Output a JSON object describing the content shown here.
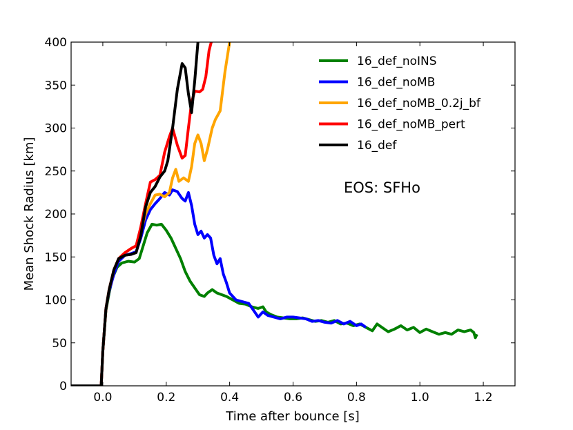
{
  "chart_data": {
    "type": "line",
    "title": "",
    "xlabel": "Time after bounce [s]",
    "ylabel": "Mean Shock Radius [km]",
    "xlim": [
      -0.1,
      1.3
    ],
    "ylim": [
      0,
      400
    ],
    "xticks": [
      0.0,
      0.2,
      0.4,
      0.6,
      0.8,
      1.0,
      1.2
    ],
    "xtick_labels": [
      "0.0",
      "0.2",
      "0.4",
      "0.6",
      "0.8",
      "1.0",
      "1.2"
    ],
    "yticks": [
      0,
      50,
      100,
      150,
      200,
      250,
      300,
      350,
      400
    ],
    "ytick_labels": [
      "0",
      "50",
      "100",
      "150",
      "200",
      "250",
      "300",
      "350",
      "400"
    ],
    "grid": false,
    "legend_position": "top-right",
    "annotation": "EOS: SFHo",
    "series": [
      {
        "name": "16_def_noINS",
        "color": "#008000",
        "points": [
          [
            -0.1,
            0
          ],
          [
            -0.005,
            0
          ],
          [
            0.0,
            40
          ],
          [
            0.01,
            88
          ],
          [
            0.02,
            108
          ],
          [
            0.03,
            125
          ],
          [
            0.045,
            138
          ],
          [
            0.06,
            143
          ],
          [
            0.08,
            145
          ],
          [
            0.1,
            144
          ],
          [
            0.115,
            148
          ],
          [
            0.125,
            160
          ],
          [
            0.14,
            178
          ],
          [
            0.155,
            188
          ],
          [
            0.17,
            187
          ],
          [
            0.185,
            188
          ],
          [
            0.2,
            181
          ],
          [
            0.215,
            172
          ],
          [
            0.23,
            160
          ],
          [
            0.245,
            148
          ],
          [
            0.26,
            133
          ],
          [
            0.275,
            122
          ],
          [
            0.29,
            114
          ],
          [
            0.305,
            106
          ],
          [
            0.32,
            104
          ],
          [
            0.33,
            108
          ],
          [
            0.345,
            112
          ],
          [
            0.36,
            108
          ],
          [
            0.375,
            106
          ],
          [
            0.39,
            104
          ],
          [
            0.41,
            100
          ],
          [
            0.43,
            96
          ],
          [
            0.45,
            95
          ],
          [
            0.47,
            92
          ],
          [
            0.49,
            90
          ],
          [
            0.505,
            92
          ],
          [
            0.515,
            86
          ],
          [
            0.53,
            83
          ],
          [
            0.55,
            80
          ],
          [
            0.57,
            79
          ],
          [
            0.59,
            78
          ],
          [
            0.61,
            78
          ],
          [
            0.63,
            79
          ],
          [
            0.65,
            77
          ],
          [
            0.67,
            75
          ],
          [
            0.69,
            76
          ],
          [
            0.71,
            74
          ],
          [
            0.73,
            76
          ],
          [
            0.75,
            72
          ],
          [
            0.77,
            73
          ],
          [
            0.79,
            70
          ],
          [
            0.81,
            72
          ],
          [
            0.83,
            68
          ],
          [
            0.85,
            64
          ],
          [
            0.865,
            72
          ],
          [
            0.88,
            68
          ],
          [
            0.9,
            63
          ],
          [
            0.92,
            66
          ],
          [
            0.94,
            70
          ],
          [
            0.96,
            65
          ],
          [
            0.98,
            68
          ],
          [
            1.0,
            62
          ],
          [
            1.02,
            66
          ],
          [
            1.04,
            63
          ],
          [
            1.06,
            60
          ],
          [
            1.08,
            62
          ],
          [
            1.1,
            60
          ],
          [
            1.12,
            65
          ],
          [
            1.14,
            63
          ],
          [
            1.16,
            65
          ],
          [
            1.17,
            62
          ],
          [
            1.175,
            56
          ],
          [
            1.18,
            60
          ]
        ]
      },
      {
        "name": "16_def_noMB",
        "color": "#0000ff",
        "points": [
          [
            -0.1,
            0
          ],
          [
            -0.005,
            0
          ],
          [
            0.0,
            40
          ],
          [
            0.01,
            90
          ],
          [
            0.02,
            110
          ],
          [
            0.035,
            130
          ],
          [
            0.05,
            145
          ],
          [
            0.07,
            152
          ],
          [
            0.09,
            154
          ],
          [
            0.105,
            156
          ],
          [
            0.12,
            172
          ],
          [
            0.135,
            193
          ],
          [
            0.15,
            205
          ],
          [
            0.165,
            212
          ],
          [
            0.18,
            218
          ],
          [
            0.195,
            225
          ],
          [
            0.21,
            222
          ],
          [
            0.22,
            228
          ],
          [
            0.235,
            226
          ],
          [
            0.25,
            218
          ],
          [
            0.26,
            215
          ],
          [
            0.27,
            225
          ],
          [
            0.28,
            210
          ],
          [
            0.29,
            188
          ],
          [
            0.3,
            176
          ],
          [
            0.31,
            180
          ],
          [
            0.32,
            172
          ],
          [
            0.33,
            176
          ],
          [
            0.34,
            172
          ],
          [
            0.35,
            152
          ],
          [
            0.36,
            142
          ],
          [
            0.37,
            148
          ],
          [
            0.38,
            130
          ],
          [
            0.39,
            120
          ],
          [
            0.4,
            108
          ],
          [
            0.42,
            100
          ],
          [
            0.44,
            98
          ],
          [
            0.46,
            96
          ],
          [
            0.475,
            88
          ],
          [
            0.49,
            80
          ],
          [
            0.505,
            86
          ],
          [
            0.52,
            82
          ],
          [
            0.54,
            80
          ],
          [
            0.56,
            78
          ],
          [
            0.58,
            80
          ],
          [
            0.6,
            80
          ],
          [
            0.62,
            79
          ],
          [
            0.64,
            78
          ],
          [
            0.66,
            75
          ],
          [
            0.68,
            76
          ],
          [
            0.7,
            74
          ],
          [
            0.72,
            73
          ],
          [
            0.74,
            76
          ],
          [
            0.76,
            72
          ],
          [
            0.78,
            75
          ],
          [
            0.8,
            70
          ],
          [
            0.815,
            72
          ],
          [
            0.83,
            68
          ]
        ]
      },
      {
        "name": "16_def_noMB_0.2j_bf",
        "color": "#ffa500",
        "points": [
          [
            -0.1,
            0
          ],
          [
            -0.005,
            0
          ],
          [
            0.0,
            40
          ],
          [
            0.01,
            90
          ],
          [
            0.02,
            112
          ],
          [
            0.035,
            135
          ],
          [
            0.05,
            148
          ],
          [
            0.07,
            155
          ],
          [
            0.09,
            160
          ],
          [
            0.105,
            163
          ],
          [
            0.12,
            180
          ],
          [
            0.135,
            200
          ],
          [
            0.15,
            212
          ],
          [
            0.165,
            222
          ],
          [
            0.18,
            223
          ],
          [
            0.195,
            220
          ],
          [
            0.21,
            225
          ],
          [
            0.22,
            242
          ],
          [
            0.23,
            252
          ],
          [
            0.24,
            238
          ],
          [
            0.255,
            242
          ],
          [
            0.27,
            238
          ],
          [
            0.28,
            255
          ],
          [
            0.29,
            282
          ],
          [
            0.3,
            292
          ],
          [
            0.31,
            282
          ],
          [
            0.32,
            262
          ],
          [
            0.33,
            275
          ],
          [
            0.345,
            300
          ],
          [
            0.355,
            310
          ],
          [
            0.37,
            320
          ],
          [
            0.385,
            365
          ],
          [
            0.4,
            400
          ]
        ]
      },
      {
        "name": "16_def_noMB_pert",
        "color": "#ff0000",
        "points": [
          [
            -0.1,
            0
          ],
          [
            -0.005,
            0
          ],
          [
            0.0,
            40
          ],
          [
            0.01,
            90
          ],
          [
            0.02,
            112
          ],
          [
            0.035,
            135
          ],
          [
            0.05,
            148
          ],
          [
            0.07,
            155
          ],
          [
            0.09,
            160
          ],
          [
            0.105,
            163
          ],
          [
            0.12,
            185
          ],
          [
            0.135,
            212
          ],
          [
            0.15,
            237
          ],
          [
            0.165,
            240
          ],
          [
            0.18,
            245
          ],
          [
            0.195,
            272
          ],
          [
            0.21,
            290
          ],
          [
            0.22,
            300
          ],
          [
            0.235,
            280
          ],
          [
            0.25,
            265
          ],
          [
            0.26,
            268
          ],
          [
            0.27,
            300
          ],
          [
            0.28,
            330
          ],
          [
            0.29,
            343
          ],
          [
            0.305,
            342
          ],
          [
            0.315,
            345
          ],
          [
            0.325,
            360
          ],
          [
            0.335,
            390
          ],
          [
            0.342,
            400
          ]
        ]
      },
      {
        "name": "16_def",
        "color": "#000000",
        "points": [
          [
            -0.1,
            0
          ],
          [
            -0.005,
            0
          ],
          [
            0.0,
            40
          ],
          [
            0.01,
            90
          ],
          [
            0.02,
            112
          ],
          [
            0.035,
            135
          ],
          [
            0.05,
            148
          ],
          [
            0.07,
            152
          ],
          [
            0.09,
            153
          ],
          [
            0.105,
            155
          ],
          [
            0.12,
            175
          ],
          [
            0.135,
            208
          ],
          [
            0.15,
            225
          ],
          [
            0.165,
            232
          ],
          [
            0.18,
            243
          ],
          [
            0.195,
            250
          ],
          [
            0.205,
            262
          ],
          [
            0.22,
            300
          ],
          [
            0.235,
            345
          ],
          [
            0.25,
            375
          ],
          [
            0.26,
            370
          ],
          [
            0.27,
            340
          ],
          [
            0.28,
            318
          ],
          [
            0.29,
            355
          ],
          [
            0.3,
            400
          ]
        ]
      }
    ]
  }
}
